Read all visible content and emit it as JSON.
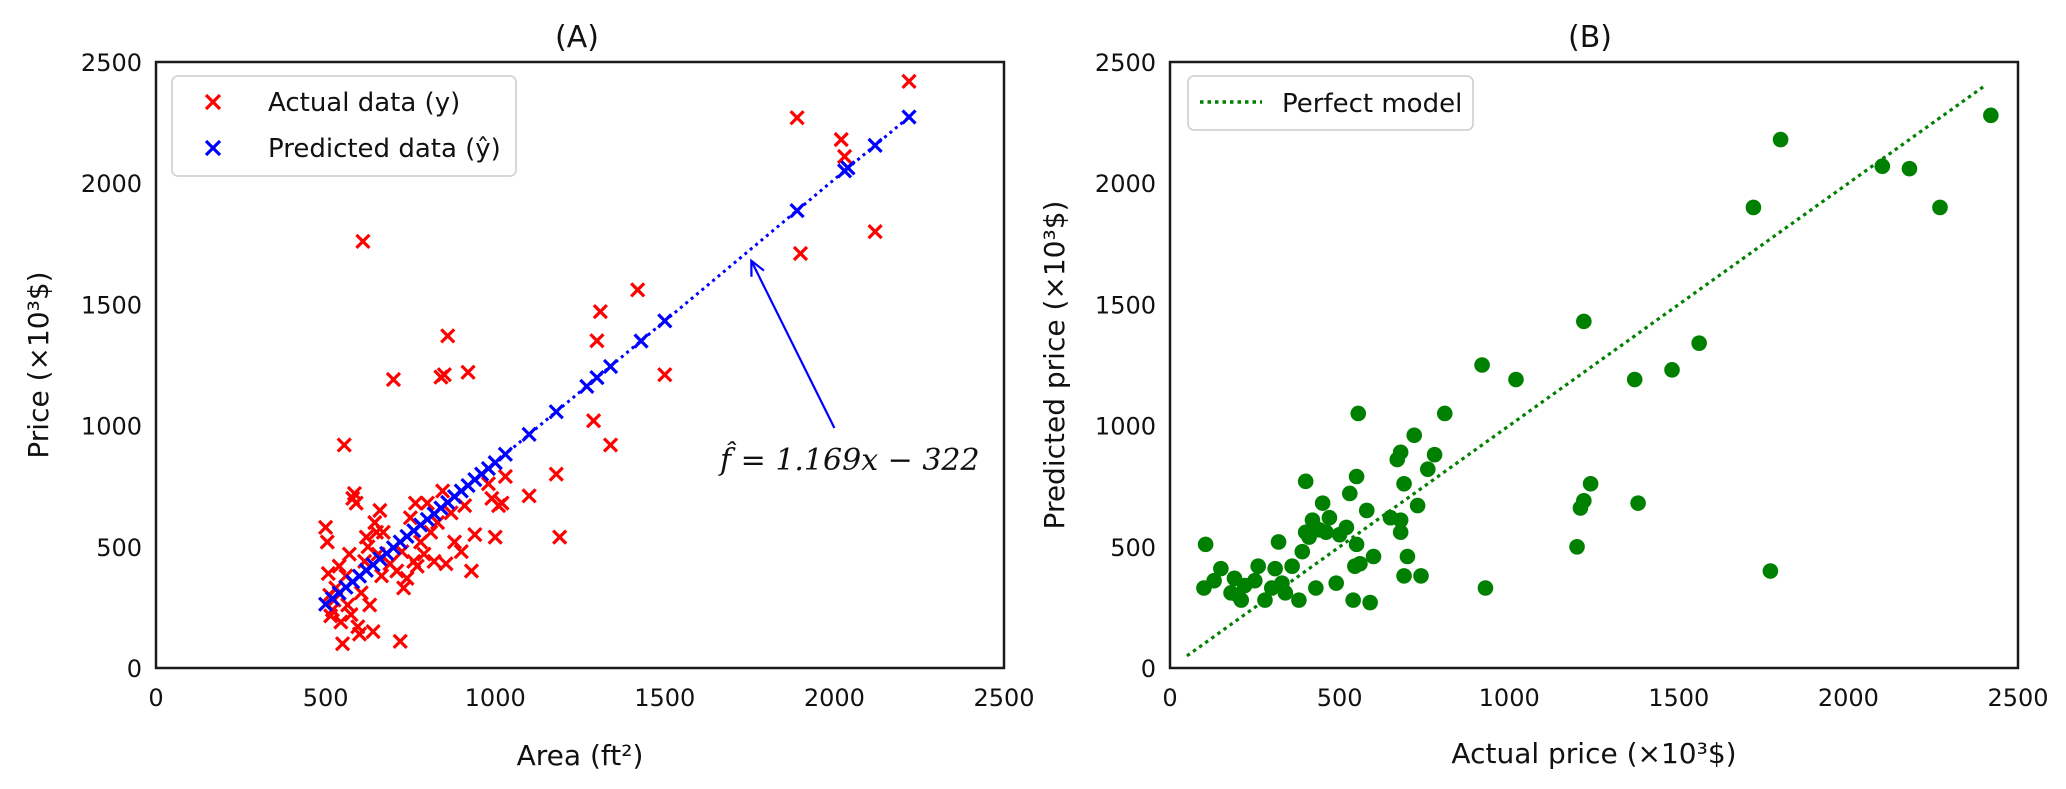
{
  "chart_data": [
    {
      "panel": "A",
      "type": "scatter",
      "title": "(A)",
      "xlabel": "Area (ft²)",
      "ylabel": "Price (×10³$)",
      "xlim": [
        0,
        2500
      ],
      "ylim": [
        0,
        2500
      ],
      "xticks": [
        "0",
        "500",
        "1000",
        "1500",
        "2000",
        "2500"
      ],
      "yticks": [
        "0",
        "500",
        "1000",
        "1500",
        "2000",
        "2500"
      ],
      "grid": false,
      "legend_position": "top-left",
      "series": [
        {
          "name": "Actual data (y)",
          "marker": "x",
          "color": "#ff0000",
          "points": [
            [
              500,
              580
            ],
            [
              505,
              520
            ],
            [
              508,
              390
            ],
            [
              512,
              300
            ],
            [
              515,
              215
            ],
            [
              520,
              240
            ],
            [
              525,
              280
            ],
            [
              530,
              330
            ],
            [
              540,
              420
            ],
            [
              545,
              190
            ],
            [
              550,
              100
            ],
            [
              555,
              920
            ],
            [
              560,
              380
            ],
            [
              565,
              260
            ],
            [
              570,
              470
            ],
            [
              575,
              220
            ],
            [
              580,
              700
            ],
            [
              585,
              720
            ],
            [
              590,
              680
            ],
            [
              595,
              170
            ],
            [
              600,
              140
            ],
            [
              605,
              310
            ],
            [
              610,
              1760
            ],
            [
              615,
              440
            ],
            [
              620,
              540
            ],
            [
              625,
              500
            ],
            [
              630,
              260
            ],
            [
              640,
              150
            ],
            [
              645,
              600
            ],
            [
              650,
              560
            ],
            [
              655,
              470
            ],
            [
              660,
              650
            ],
            [
              665,
              380
            ],
            [
              670,
              560
            ],
            [
              690,
              430
            ],
            [
              700,
              1190
            ],
            [
              710,
              400
            ],
            [
              720,
              110
            ],
            [
              725,
              480
            ],
            [
              730,
              330
            ],
            [
              740,
              370
            ],
            [
              750,
              620
            ],
            [
              760,
              440
            ],
            [
              765,
              680
            ],
            [
              770,
              420
            ],
            [
              780,
              520
            ],
            [
              790,
              470
            ],
            [
              800,
              680
            ],
            [
              810,
              560
            ],
            [
              820,
              440
            ],
            [
              830,
              600
            ],
            [
              840,
              1200
            ],
            [
              845,
              730
            ],
            [
              850,
              1210
            ],
            [
              855,
              430
            ],
            [
              860,
              1370
            ],
            [
              870,
              640
            ],
            [
              880,
              520
            ],
            [
              900,
              480
            ],
            [
              910,
              670
            ],
            [
              920,
              1220
            ],
            [
              930,
              400
            ],
            [
              940,
              550
            ],
            [
              980,
              760
            ],
            [
              990,
              700
            ],
            [
              1000,
              540
            ],
            [
              1010,
              670
            ],
            [
              1020,
              680
            ],
            [
              1030,
              790
            ],
            [
              1100,
              710
            ],
            [
              1180,
              800
            ],
            [
              1190,
              540
            ],
            [
              1290,
              1020
            ],
            [
              1300,
              1350
            ],
            [
              1310,
              1470
            ],
            [
              1340,
              920
            ],
            [
              1420,
              1560
            ],
            [
              1500,
              1210
            ],
            [
              1890,
              2270
            ],
            [
              1900,
              1710
            ],
            [
              2020,
              2180
            ],
            [
              2030,
              2110
            ],
            [
              2120,
              1800
            ],
            [
              2220,
              2420
            ]
          ]
        },
        {
          "name": "Predicted data (ŷ)",
          "marker": "x",
          "color": "#0000ff",
          "points": [
            [
              500,
              263
            ],
            [
              520,
              286
            ],
            [
              540,
              309
            ],
            [
              560,
              333
            ],
            [
              580,
              356
            ],
            [
              600,
              379
            ],
            [
              620,
              403
            ],
            [
              640,
              426
            ],
            [
              660,
              450
            ],
            [
              680,
              473
            ],
            [
              700,
              496
            ],
            [
              720,
              520
            ],
            [
              740,
              543
            ],
            [
              760,
              566
            ],
            [
              780,
              590
            ],
            [
              800,
              613
            ],
            [
              820,
              636
            ],
            [
              840,
              660
            ],
            [
              860,
              683
            ],
            [
              880,
              707
            ],
            [
              900,
              730
            ],
            [
              920,
              753
            ],
            [
              940,
              777
            ],
            [
              960,
              800
            ],
            [
              980,
              823
            ],
            [
              1000,
              847
            ],
            [
              1030,
              882
            ],
            [
              1100,
              964
            ],
            [
              1180,
              1057
            ],
            [
              1270,
              1162
            ],
            [
              1300,
              1198
            ],
            [
              1340,
              1244
            ],
            [
              1430,
              1349
            ],
            [
              1500,
              1432
            ],
            [
              1890,
              1887
            ],
            [
              2030,
              2051
            ],
            [
              2040,
              2063
            ],
            [
              2120,
              2156
            ],
            [
              2220,
              2273
            ]
          ]
        }
      ],
      "fit_line": {
        "slope": 1.169,
        "intercept": -322,
        "x_range": [
          500,
          2220
        ],
        "style": "dotted",
        "color": "#0000ff"
      },
      "annotation": {
        "text": "f̂ = 1.169x − 322",
        "text_at": [
          1660,
          830
        ],
        "arrow_from": [
          2000,
          990
        ],
        "arrow_to": [
          1755,
          1680
        ],
        "color": "#0000ff"
      }
    },
    {
      "panel": "B",
      "type": "scatter",
      "title": "(B)",
      "xlabel": "Actual price (×10³$)",
      "ylabel": "Predicted price (×10³$)",
      "xlim": [
        0,
        2500
      ],
      "ylim": [
        0,
        2500
      ],
      "xticks": [
        "0",
        "500",
        "1000",
        "1500",
        "2000",
        "2500"
      ],
      "yticks": [
        "0",
        "500",
        "1000",
        "1500",
        "2000",
        "2500"
      ],
      "grid": false,
      "legend_position": "top-left",
      "reference_line": {
        "name": "Perfect model",
        "style": "dotted",
        "color": "#008000",
        "from": [
          50,
          50
        ],
        "to": [
          2400,
          2400
        ]
      },
      "series": [
        {
          "name": "",
          "marker": "o",
          "color": "#008000",
          "points": [
            [
              100,
              330
            ],
            [
              105,
              510
            ],
            [
              130,
              360
            ],
            [
              150,
              410
            ],
            [
              180,
              310
            ],
            [
              190,
              370
            ],
            [
              200,
              300
            ],
            [
              210,
              280
            ],
            [
              220,
              340
            ],
            [
              250,
              360
            ],
            [
              260,
              420
            ],
            [
              280,
              280
            ],
            [
              300,
              330
            ],
            [
              310,
              410
            ],
            [
              320,
              520
            ],
            [
              330,
              350
            ],
            [
              340,
              310
            ],
            [
              360,
              420
            ],
            [
              380,
              280
            ],
            [
              390,
              480
            ],
            [
              400,
              560
            ],
            [
              400,
              770
            ],
            [
              410,
              540
            ],
            [
              420,
              610
            ],
            [
              430,
              330
            ],
            [
              440,
              570
            ],
            [
              450,
              680
            ],
            [
              460,
              560
            ],
            [
              470,
              620
            ],
            [
              490,
              350
            ],
            [
              500,
              550
            ],
            [
              520,
              580
            ],
            [
              530,
              720
            ],
            [
              540,
              280
            ],
            [
              545,
              420
            ],
            [
              550,
              510
            ],
            [
              550,
              790
            ],
            [
              555,
              1050
            ],
            [
              560,
              430
            ],
            [
              580,
              650
            ],
            [
              590,
              270
            ],
            [
              600,
              460
            ],
            [
              650,
              620
            ],
            [
              670,
              860
            ],
            [
              680,
              560
            ],
            [
              680,
              610
            ],
            [
              680,
              890
            ],
            [
              690,
              760
            ],
            [
              690,
              380
            ],
            [
              700,
              460
            ],
            [
              720,
              960
            ],
            [
              730,
              670
            ],
            [
              740,
              380
            ],
            [
              760,
              820
            ],
            [
              780,
              880
            ],
            [
              810,
              1050
            ],
            [
              920,
              1250
            ],
            [
              930,
              330
            ],
            [
              1020,
              1190
            ],
            [
              1200,
              500
            ],
            [
              1210,
              660
            ],
            [
              1220,
              690
            ],
            [
              1220,
              1430
            ],
            [
              1240,
              760
            ],
            [
              1370,
              1190
            ],
            [
              1380,
              680
            ],
            [
              1480,
              1230
            ],
            [
              1560,
              1340
            ],
            [
              1720,
              1900
            ],
            [
              1770,
              400
            ],
            [
              1800,
              2180
            ],
            [
              2100,
              2070
            ],
            [
              2180,
              2060
            ],
            [
              2270,
              1900
            ],
            [
              2420,
              2280
            ]
          ]
        }
      ]
    }
  ],
  "texts": {
    "legend_a_actual": "Actual data (y)",
    "legend_a_pred": "Predicted data (ŷ)",
    "legend_b_perfect": "Perfect model",
    "annotation": "f̂ = 1.169x − 322"
  }
}
